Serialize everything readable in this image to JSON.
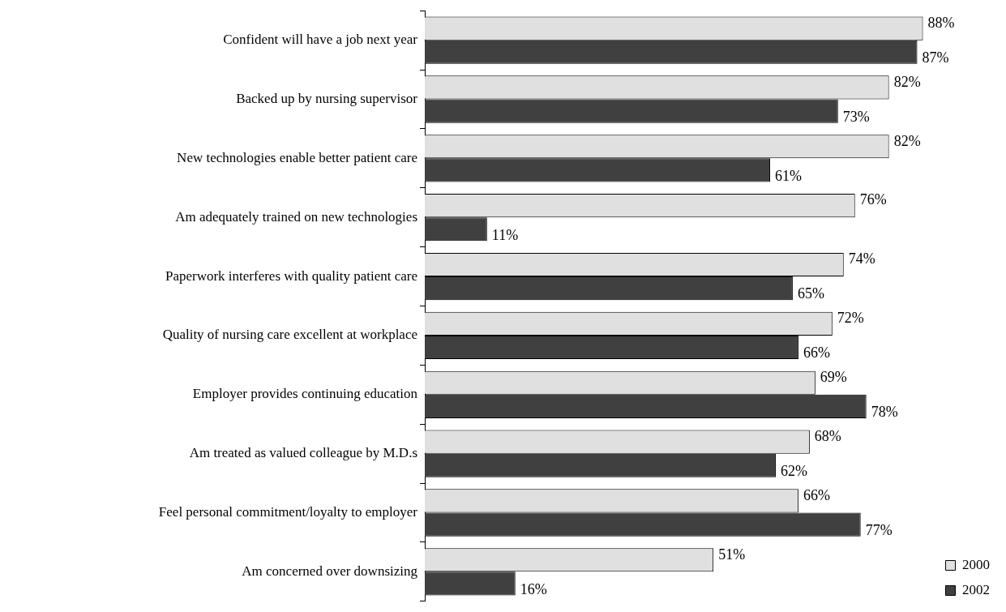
{
  "chart_data": {
    "type": "bar",
    "orientation": "horizontal",
    "categories": [
      "Confident will have a job next year",
      "Backed up by nursing supervisor",
      "New technologies enable better patient care",
      "Am adequately trained on new technologies",
      "Paperwork interferes with quality patient care",
      "Quality of nursing care excellent at workplace",
      "Employer provides continuing education",
      "Am treated as valued colleague by M.D.s",
      "Feel personal commitment/loyalty to employer",
      "Am concerned over downsizing"
    ],
    "series": [
      {
        "name": "2000",
        "color": "#e0e0e0",
        "values": [
          88,
          82,
          82,
          76,
          74,
          72,
          69,
          68,
          66,
          51
        ],
        "value_labels": [
          "88%",
          "82%",
          "82%",
          "76%",
          "74%",
          "72%",
          "69%",
          "68%",
          "66%",
          "51%"
        ]
      },
      {
        "name": "2002",
        "color": "#404040",
        "values": [
          87,
          73,
          61,
          11,
          65,
          66,
          78,
          62,
          77,
          16
        ],
        "value_labels": [
          "87%",
          "73%",
          "61%",
          "11%",
          "65%",
          "66%",
          "78%",
          "62%",
          "77%",
          "16%"
        ]
      }
    ],
    "legend": "bottom right"
  }
}
